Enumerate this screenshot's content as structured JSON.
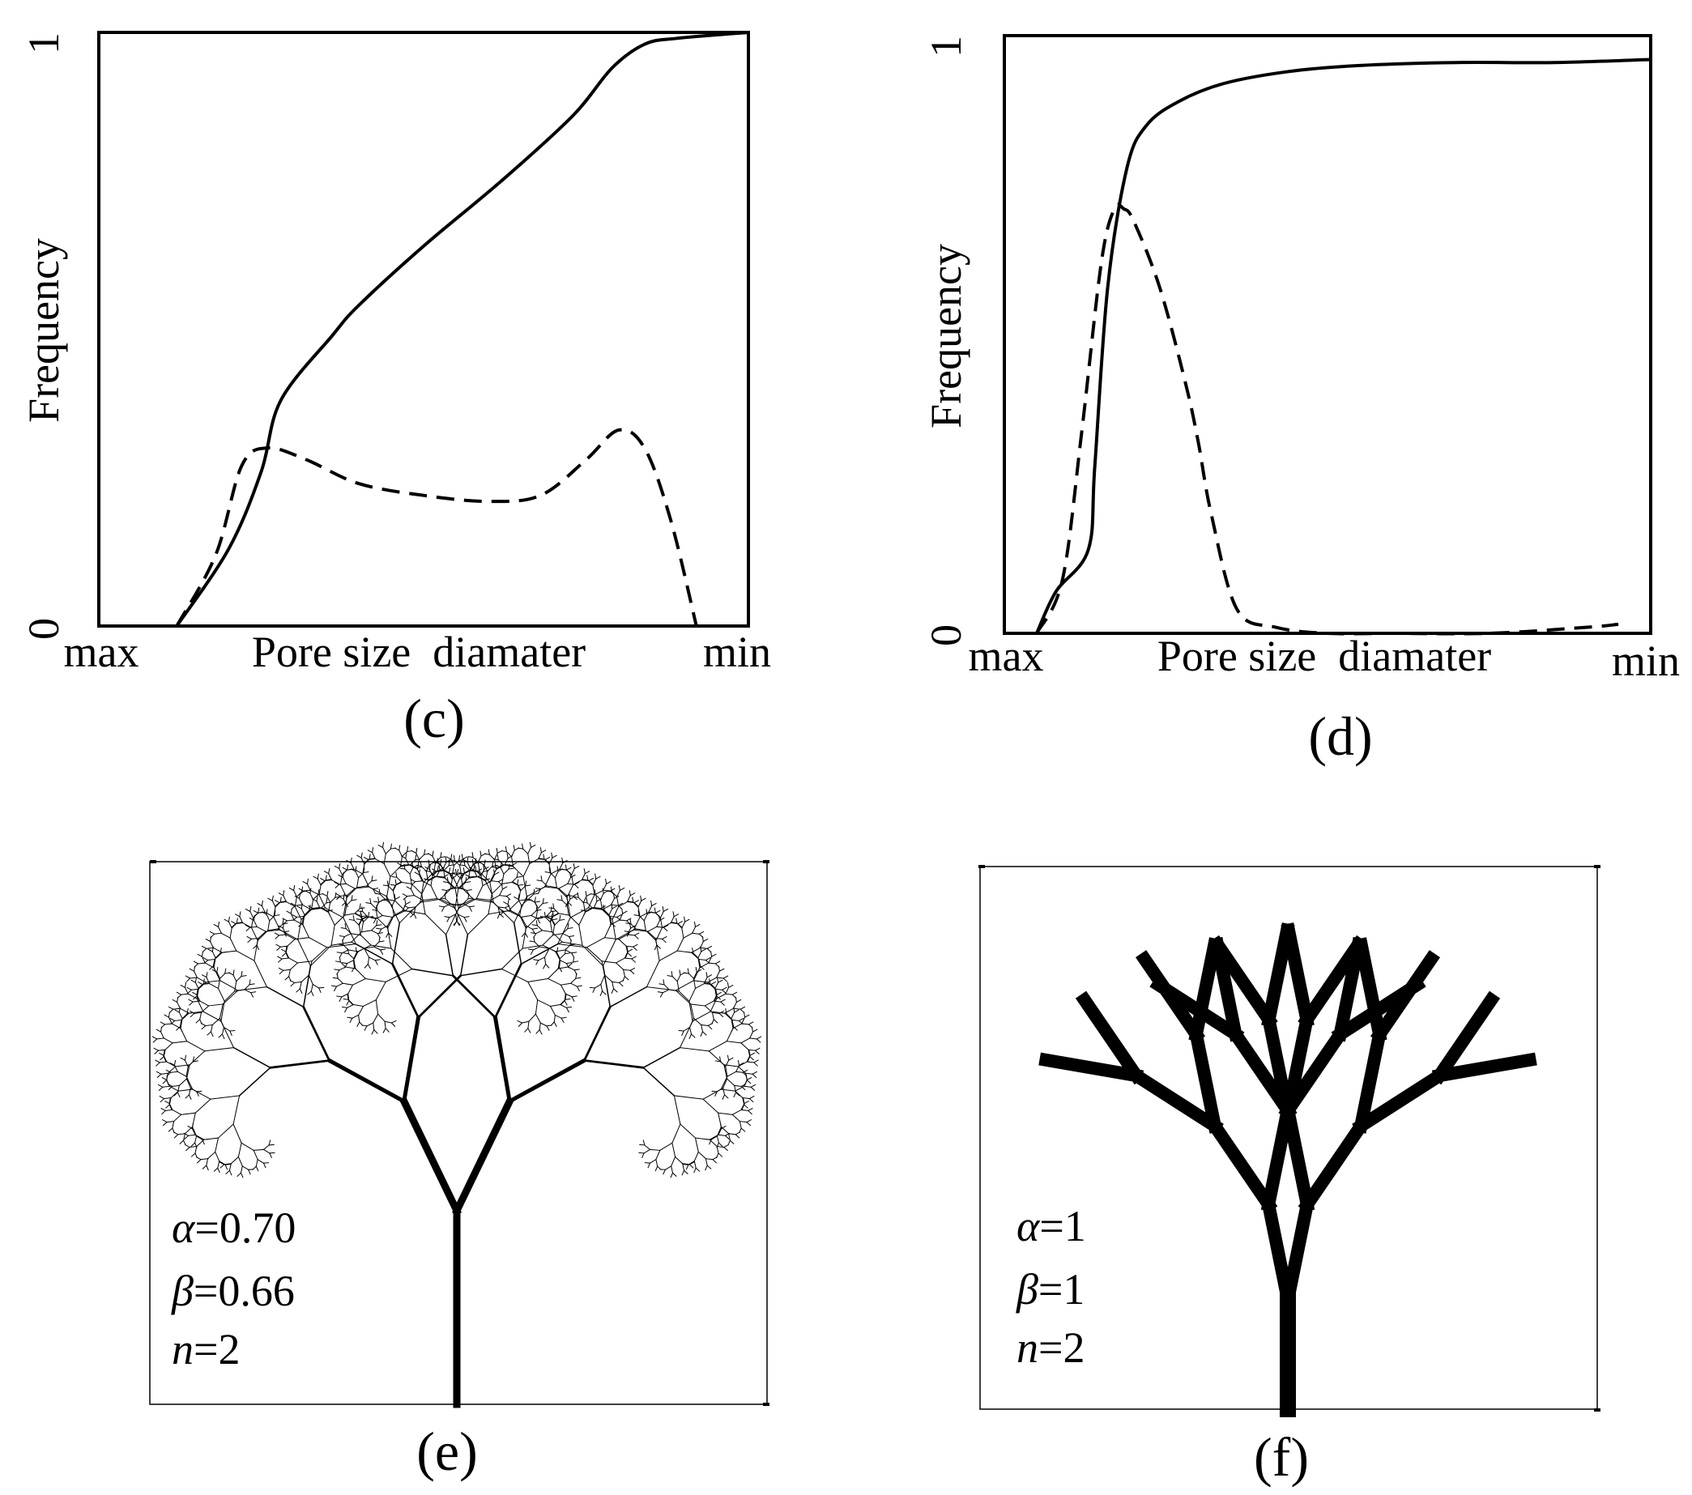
{
  "chart_data": [
    {
      "type": "line",
      "panel": "(c)",
      "ylabel": "Frequency",
      "xlabel": "Pore size  diamater",
      "x_tick_left": "max",
      "x_tick_right": "min",
      "y_tick_bottom": "0",
      "y_tick_top": "1",
      "xlim": [
        0,
        1
      ],
      "ylim": [
        0,
        1
      ],
      "series": [
        {
          "style": "solid",
          "x": [
            0.12,
            0.2,
            0.25,
            0.28,
            0.36,
            0.4,
            0.5,
            0.62,
            0.73,
            0.79,
            0.84,
            0.89,
            1.0
          ],
          "y": [
            0.0,
            0.13,
            0.26,
            0.38,
            0.49,
            0.54,
            0.64,
            0.75,
            0.86,
            0.94,
            0.98,
            0.99,
            1.0
          ]
        },
        {
          "style": "dashed",
          "x": [
            0.12,
            0.18,
            0.22,
            0.26,
            0.32,
            0.4,
            0.5,
            0.6,
            0.68,
            0.75,
            0.8,
            0.84,
            0.88,
            0.92
          ],
          "y": [
            0.0,
            0.12,
            0.27,
            0.3,
            0.28,
            0.24,
            0.22,
            0.21,
            0.22,
            0.28,
            0.33,
            0.3,
            0.18,
            0.0
          ]
        }
      ]
    },
    {
      "type": "line",
      "panel": "(d)",
      "ylabel": "Frequency",
      "xlabel": "Pore size  diamater",
      "x_tick_left": "max",
      "x_tick_right": "min",
      "y_tick_bottom": "0",
      "y_tick_top": "1",
      "xlim": [
        0,
        1
      ],
      "ylim": [
        0,
        1
      ],
      "series": [
        {
          "style": "solid",
          "x": [
            0.05,
            0.08,
            0.13,
            0.14,
            0.16,
            0.19,
            0.22,
            0.27,
            0.34,
            0.44,
            0.55,
            0.7,
            0.85,
            1.0
          ],
          "y": [
            0.0,
            0.07,
            0.14,
            0.28,
            0.58,
            0.78,
            0.85,
            0.89,
            0.92,
            0.94,
            0.95,
            0.955,
            0.955,
            0.96
          ]
        },
        {
          "style": "dashed",
          "x": [
            0.05,
            0.09,
            0.12,
            0.15,
            0.17,
            0.185,
            0.2,
            0.24,
            0.28,
            0.3,
            0.32,
            0.36,
            0.42,
            0.5,
            0.6,
            0.75,
            0.9,
            0.95
          ],
          "y": [
            0.0,
            0.09,
            0.34,
            0.62,
            0.71,
            0.71,
            0.69,
            0.58,
            0.42,
            0.32,
            0.2,
            0.04,
            0.01,
            0.0,
            0.0,
            0.0,
            0.01,
            0.015
          ]
        }
      ]
    }
  ],
  "panels": {
    "c": {
      "caption": "(c)"
    },
    "d": {
      "caption": "(d)"
    },
    "e": {
      "caption": "(e)",
      "alpha_sym": "α",
      "alpha_val": "=0.70",
      "beta_sym": "β",
      "beta_val": "=0.66",
      "n_sym": "n",
      "n_val": "=2"
    },
    "f": {
      "caption": "(f)",
      "alpha_sym": "α",
      "alpha_val": "=1",
      "beta_sym": "β",
      "beta_val": "=1",
      "n_sym": "n",
      "n_val": "=2"
    }
  }
}
